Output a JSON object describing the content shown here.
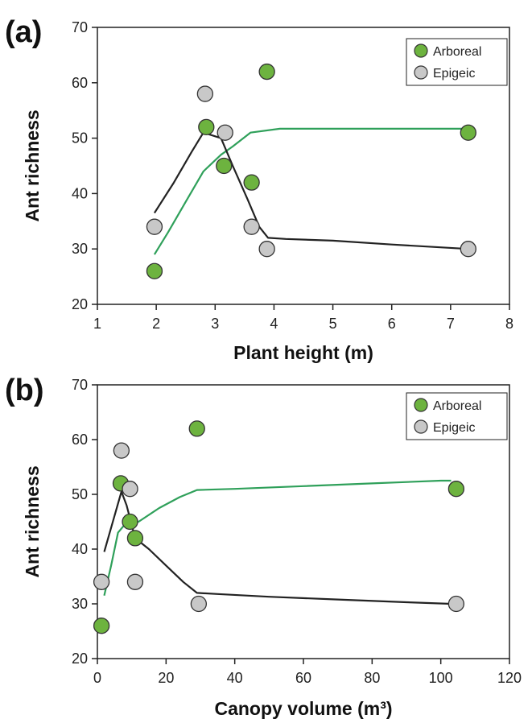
{
  "chart_data": [
    {
      "type": "scatter",
      "panel_label": "(a)",
      "xlabel": "Plant height (m)",
      "ylabel": "Ant richness",
      "xlim": [
        1,
        8
      ],
      "ylim": [
        20,
        70
      ],
      "xticks": [
        1,
        2,
        3,
        4,
        5,
        6,
        7,
        8
      ],
      "yticks": [
        20,
        30,
        40,
        50,
        60,
        70
      ],
      "grid": false,
      "legend_position": "top-right",
      "series": [
        {
          "name": "Arboreal",
          "color": "#6db33f",
          "points": [
            [
              1.97,
              26
            ],
            [
              2.85,
              52
            ],
            [
              3.15,
              45
            ],
            [
              3.62,
              42
            ],
            [
              3.88,
              62
            ],
            [
              7.3,
              51
            ]
          ],
          "fit": [
            [
              1.97,
              29
            ],
            [
              2.2,
              33
            ],
            [
              2.5,
              38.5
            ],
            [
              2.8,
              44
            ],
            [
              3.1,
              47
            ],
            [
              3.3,
              48.5
            ],
            [
              3.6,
              51
            ],
            [
              4.1,
              51.7
            ],
            [
              5.0,
              51.7
            ],
            [
              6.0,
              51.7
            ],
            [
              7.3,
              51.7
            ]
          ]
        },
        {
          "name": "Epigeic",
          "color": "#c8c8c8",
          "points": [
            [
              1.97,
              34
            ],
            [
              2.83,
              58
            ],
            [
              3.17,
              51
            ],
            [
              3.62,
              34
            ],
            [
              3.88,
              30
            ],
            [
              7.3,
              30
            ]
          ],
          "fit": [
            [
              1.97,
              36.5
            ],
            [
              2.3,
              42
            ],
            [
              2.6,
              47.5
            ],
            [
              2.8,
              51
            ],
            [
              3.1,
              50
            ],
            [
              3.3,
              45
            ],
            [
              3.55,
              39
            ],
            [
              3.75,
              34
            ],
            [
              3.9,
              32
            ],
            [
              4.2,
              31.8
            ],
            [
              5.0,
              31.5
            ],
            [
              6.0,
              30.8
            ],
            [
              7.3,
              30
            ]
          ]
        }
      ]
    },
    {
      "type": "scatter",
      "panel_label": "(b)",
      "xlabel": "Canopy volume (m³)",
      "ylabel": "Ant richness",
      "xlim": [
        0,
        120
      ],
      "ylim": [
        20,
        70
      ],
      "xticks": [
        0,
        20,
        40,
        60,
        80,
        100,
        120
      ],
      "yticks": [
        20,
        30,
        40,
        50,
        60,
        70
      ],
      "grid": false,
      "legend_position": "top-right",
      "series": [
        {
          "name": "Arboreal",
          "color": "#6db33f",
          "points": [
            [
              1.2,
              26
            ],
            [
              6.8,
              52
            ],
            [
              9.5,
              45
            ],
            [
              11,
              42
            ],
            [
              29,
              62
            ],
            [
              104.5,
              51
            ]
          ],
          "fit": [
            [
              2,
              31.5
            ],
            [
              4,
              37
            ],
            [
              6,
              43
            ],
            [
              8,
              44.5
            ],
            [
              12,
              45
            ],
            [
              18,
              47.5
            ],
            [
              24,
              49.5
            ],
            [
              29,
              50.8
            ],
            [
              40,
              51
            ],
            [
              60,
              51.5
            ],
            [
              80,
              52
            ],
            [
              100,
              52.5
            ],
            [
              103,
              52.5
            ]
          ]
        },
        {
          "name": "Epigeic",
          "color": "#c8c8c8",
          "points": [
            [
              1.2,
              34
            ],
            [
              7,
              58
            ],
            [
              9.5,
              51
            ],
            [
              11,
              34
            ],
            [
              29.5,
              30
            ],
            [
              104.5,
              30
            ]
          ],
          "fit": [
            [
              2,
              39.5
            ],
            [
              4.5,
              45
            ],
            [
              7,
              50.5
            ],
            [
              8.5,
              48
            ],
            [
              11,
              42
            ],
            [
              15,
              40
            ],
            [
              20,
              37
            ],
            [
              25,
              34
            ],
            [
              29,
              32
            ],
            [
              35,
              31.8
            ],
            [
              50,
              31.3
            ],
            [
              70,
              30.8
            ],
            [
              90,
              30.3
            ],
            [
              103,
              30
            ]
          ]
        }
      ]
    }
  ]
}
